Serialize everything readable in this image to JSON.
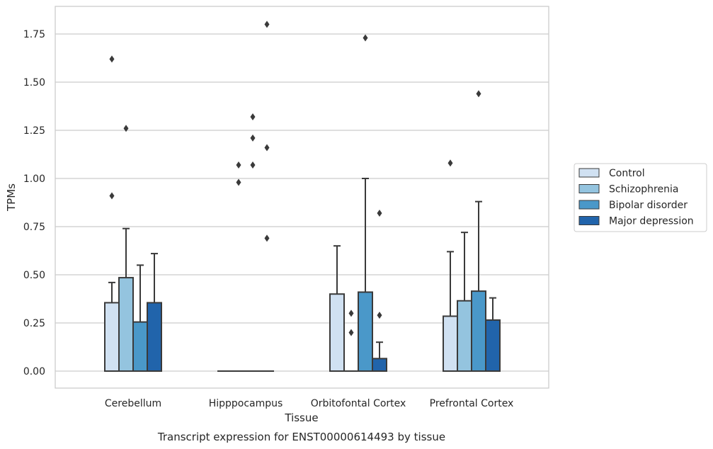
{
  "chart_data": {
    "type": "box",
    "title": "Transcript expression for ENST00000614493 by tissue",
    "xlabel": "Tissue",
    "ylabel": "TPMs",
    "ylim": [
      -0.09,
      1.89
    ],
    "yticks": [
      0.0,
      0.25,
      0.5,
      0.75,
      1.0,
      1.25,
      1.5,
      1.75
    ],
    "ytick_labels": [
      "0.00",
      "0.25",
      "0.50",
      "0.75",
      "1.00",
      "1.25",
      "1.50",
      "1.75"
    ],
    "grid": "horizontal",
    "legend_position": "right",
    "categories": [
      "Cerebellum",
      "Hipppocampus",
      "Orbitofontal Cortex",
      "Prefrontal Cortex"
    ],
    "series": [
      {
        "name": "Control",
        "color": "#d0e1f2",
        "boxes": [
          {
            "min": 0.0,
            "q1": 0.0,
            "median": 0.0,
            "q3": 0.355,
            "max": 0.46,
            "outliers": [
              0.91,
              1.62
            ]
          },
          {
            "min": 0.0,
            "q1": 0.0,
            "median": 0.0,
            "q3": 0.0,
            "max": 0.0,
            "outliers": []
          },
          {
            "min": 0.0,
            "q1": 0.0,
            "median": 0.0,
            "q3": 0.4,
            "max": 0.65,
            "outliers": []
          },
          {
            "min": 0.0,
            "q1": 0.0,
            "median": 0.0,
            "q3": 0.285,
            "max": 0.62,
            "outliers": [
              1.08
            ]
          }
        ]
      },
      {
        "name": "Schizophrenia",
        "color": "#94c4df",
        "boxes": [
          {
            "min": 0.0,
            "q1": 0.0,
            "median": 0.0,
            "q3": 0.485,
            "max": 0.74,
            "outliers": [
              1.26
            ]
          },
          {
            "min": 0.0,
            "q1": 0.0,
            "median": 0.0,
            "q3": 0.0,
            "max": 0.0,
            "outliers": [
              0.98,
              1.07
            ]
          },
          {
            "min": 0.0,
            "q1": 0.0,
            "median": 0.0,
            "q3": 0.0,
            "max": 0.0,
            "outliers": [
              0.2,
              0.3
            ]
          },
          {
            "min": 0.0,
            "q1": 0.0,
            "median": 0.0,
            "q3": 0.365,
            "max": 0.72,
            "outliers": []
          }
        ]
      },
      {
        "name": "Bipolar disorder",
        "color": "#4a98c9",
        "boxes": [
          {
            "min": 0.0,
            "q1": 0.0,
            "median": 0.0,
            "q3": 0.255,
            "max": 0.55,
            "outliers": []
          },
          {
            "min": 0.0,
            "q1": 0.0,
            "median": 0.0,
            "q3": 0.0,
            "max": 0.0,
            "outliers": [
              1.07,
              1.21,
              1.32
            ]
          },
          {
            "min": 0.0,
            "q1": 0.0,
            "median": 0.0,
            "q3": 0.41,
            "max": 1.0,
            "outliers": [
              1.73
            ]
          },
          {
            "min": 0.0,
            "q1": 0.0,
            "median": 0.0,
            "q3": 0.415,
            "max": 0.88,
            "outliers": [
              1.44
            ]
          }
        ]
      },
      {
        "name": "Major depression",
        "color": "#2164ab",
        "boxes": [
          {
            "min": 0.0,
            "q1": 0.0,
            "median": 0.0,
            "q3": 0.355,
            "max": 0.61,
            "outliers": []
          },
          {
            "min": 0.0,
            "q1": 0.0,
            "median": 0.0,
            "q3": 0.0,
            "max": 0.0,
            "outliers": [
              0.69,
              1.16,
              1.8
            ]
          },
          {
            "min": 0.0,
            "q1": 0.0,
            "median": 0.0,
            "q3": 0.065,
            "max": 0.15,
            "outliers": [
              0.29,
              0.82
            ]
          },
          {
            "min": 0.0,
            "q1": 0.0,
            "median": 0.0,
            "q3": 0.265,
            "max": 0.38,
            "outliers": []
          }
        ]
      }
    ]
  }
}
